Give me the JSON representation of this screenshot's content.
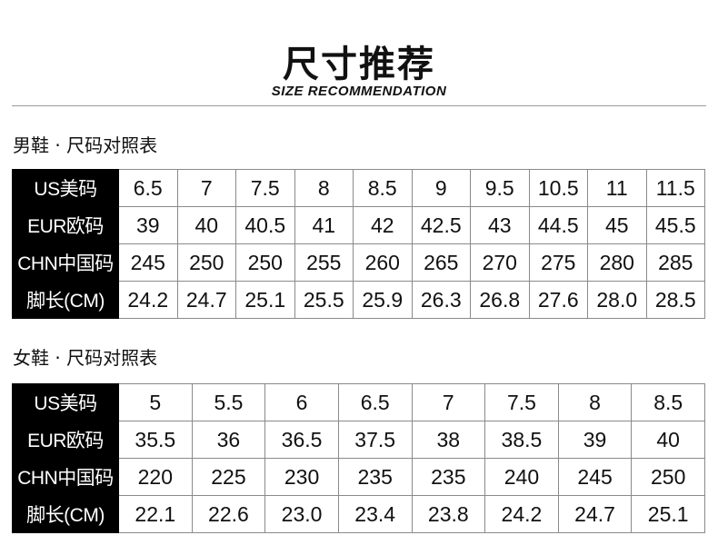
{
  "header": {
    "title": "尺寸推荐",
    "subtitle": "SIZE RECOMMENDATION"
  },
  "men": {
    "label": "男鞋 · 尺码对照表",
    "rows": [
      {
        "label": "US美码",
        "values": [
          "6.5",
          "7",
          "7.5",
          "8",
          "8.5",
          "9",
          "9.5",
          "10.5",
          "11",
          "11.5"
        ]
      },
      {
        "label": "EUR欧码",
        "values": [
          "39",
          "40",
          "40.5",
          "41",
          "42",
          "42.5",
          "43",
          "44.5",
          "45",
          "45.5"
        ]
      },
      {
        "label": "CHN中国码",
        "values": [
          "245",
          "250",
          "250",
          "255",
          "260",
          "265",
          "270",
          "275",
          "280",
          "285"
        ]
      },
      {
        "label": "脚长(CM)",
        "values": [
          "24.2",
          "24.7",
          "25.1",
          "25.5",
          "25.9",
          "26.3",
          "26.8",
          "27.6",
          "28.0",
          "28.5"
        ]
      }
    ]
  },
  "women": {
    "label": "女鞋 · 尺码对照表",
    "rows": [
      {
        "label": "US美码",
        "values": [
          "5",
          "5.5",
          "6",
          "6.5",
          "7",
          "7.5",
          "8",
          "8.5"
        ]
      },
      {
        "label": "EUR欧码",
        "values": [
          "35.5",
          "36",
          "36.5",
          "37.5",
          "38",
          "38.5",
          "39",
          "40"
        ]
      },
      {
        "label": "CHN中国码",
        "values": [
          "220",
          "225",
          "230",
          "235",
          "235",
          "240",
          "245",
          "250"
        ]
      },
      {
        "label": "脚长(CM)",
        "values": [
          "22.1",
          "22.6",
          "23.0",
          "23.4",
          "23.8",
          "24.2",
          "24.7",
          "25.1"
        ]
      }
    ]
  }
}
